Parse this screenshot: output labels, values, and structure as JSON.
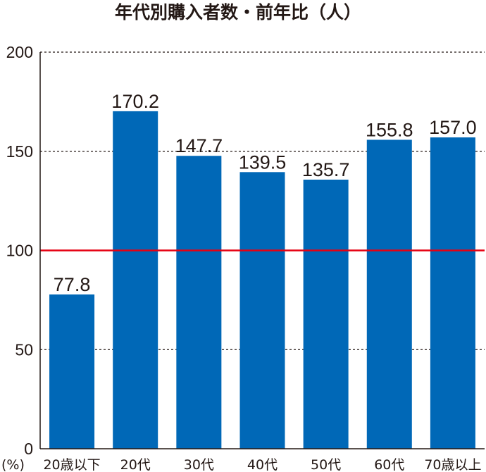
{
  "chart_data": {
    "type": "bar",
    "title": "年代別購入者数・前年比（人）",
    "unit_label": "(%)",
    "categories": [
      "20歳以下",
      "20代",
      "30代",
      "40代",
      "50代",
      "60代",
      "70歳以上"
    ],
    "values": [
      77.8,
      170.2,
      147.7,
      139.5,
      135.7,
      155.8,
      157.0
    ],
    "value_labels": [
      "77.8",
      "170.2",
      "147.7",
      "139.5",
      "135.7",
      "155.8",
      "157.0"
    ],
    "ylim": [
      0,
      200
    ],
    "yticks": [
      0,
      50,
      100,
      150,
      200
    ],
    "ytick_labels": [
      "0",
      "50",
      "100",
      "150",
      "200"
    ],
    "reference_line": 100,
    "grid": true,
    "legend": "none",
    "bar_color": "#0068b7",
    "reference_color": "#e60012"
  }
}
